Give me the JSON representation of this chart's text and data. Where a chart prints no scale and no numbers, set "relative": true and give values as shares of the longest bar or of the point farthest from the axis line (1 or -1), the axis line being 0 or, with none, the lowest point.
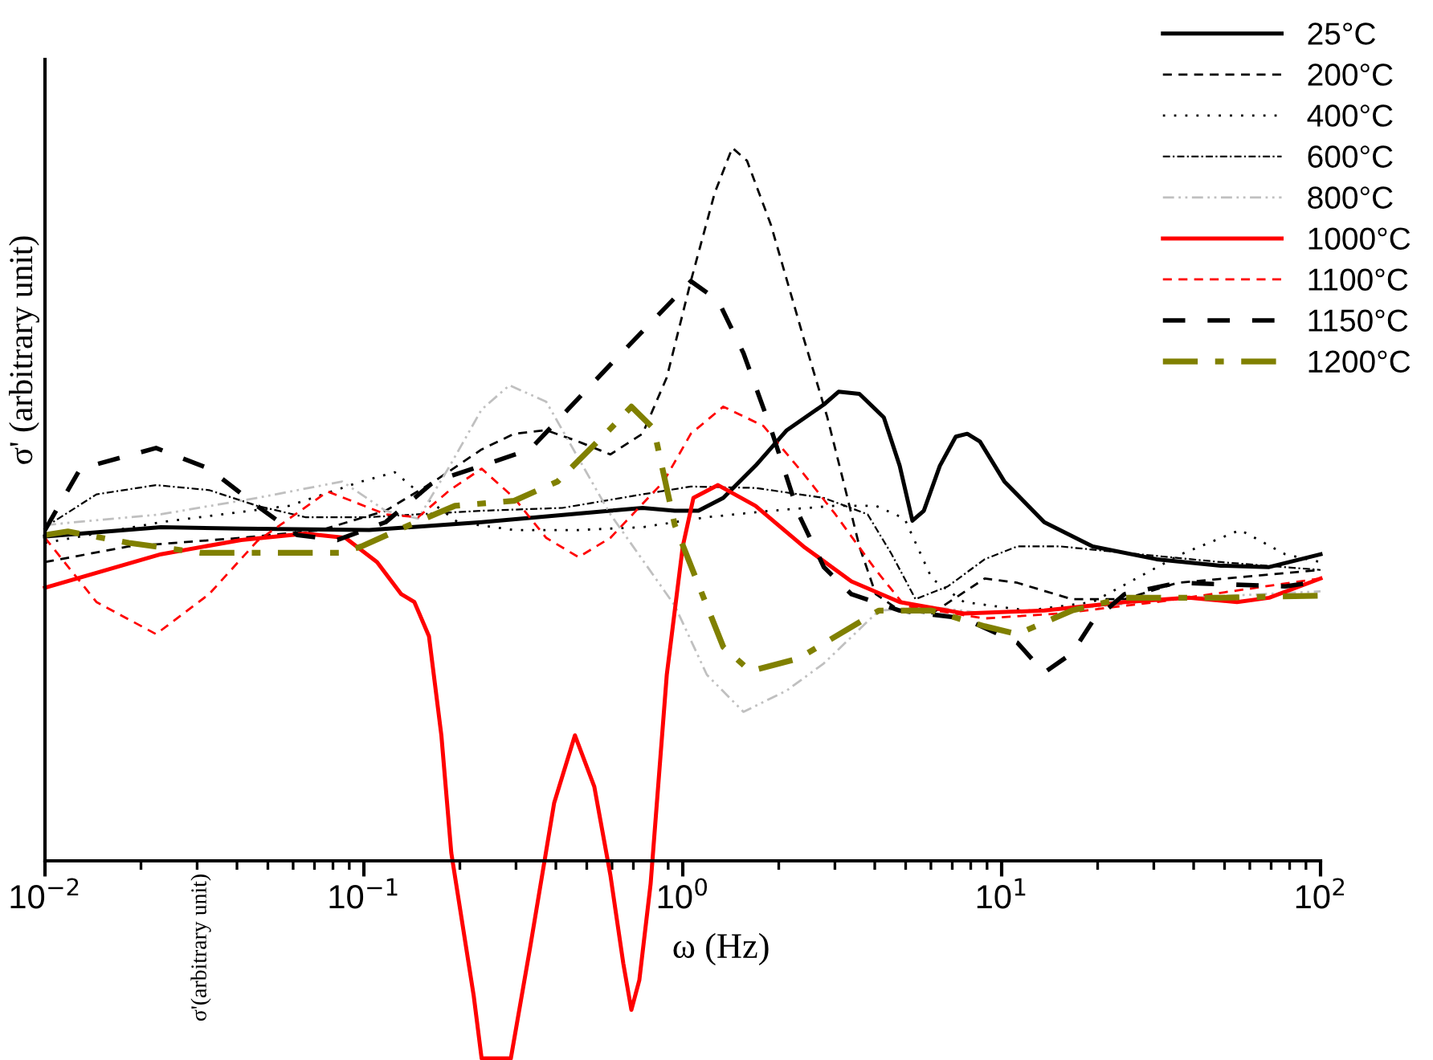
{
  "chart_data": {
    "type": "line",
    "xlabel": "ω (Hz)",
    "ylabel": "σ' (arbitrary unit)",
    "annotations": [
      "σ'(arbitrary unit)"
    ],
    "relative": true,
    "log": "x",
    "xlim": [
      0.01,
      100
    ],
    "xticks": [
      {
        "value": 0.01,
        "label": "10$^{−2}$"
      },
      {
        "value": 0.1,
        "label": "10$^{−1}$"
      },
      {
        "value": 1,
        "label": "10$^{0}$"
      },
      {
        "value": 10,
        "label": "10$^{1}$"
      },
      {
        "value": 100,
        "label": "10$^{2}$"
      }
    ],
    "grid": false,
    "legend": "top right",
    "marker": "none",
    "series": [
      {
        "name": "25°C",
        "color": "#000000",
        "line_style": "solid",
        "x": [
          0.01,
          0.0231,
          0.0412,
          0.104,
          0.234,
          0.593,
          0.748,
          0.944,
          1.12,
          1.34,
          1.69,
          2.12,
          2.77,
          3.08,
          3.58,
          4.27,
          4.79,
          5.25,
          5.7,
          6.4,
          7.18,
          7.8,
          8.55,
          10.2,
          13.6,
          19.3,
          30.6,
          48.7,
          69.0,
          100
        ],
        "values": [
          0.455,
          0.468,
          0.466,
          0.464,
          0.475,
          0.491,
          0.495,
          0.491,
          0.491,
          0.509,
          0.554,
          0.604,
          0.64,
          0.658,
          0.655,
          0.622,
          0.554,
          0.477,
          0.491,
          0.554,
          0.595,
          0.599,
          0.588,
          0.532,
          0.475,
          0.441,
          0.423,
          0.414,
          0.412,
          0.43
        ]
      },
      {
        "name": "200°C",
        "color": "#000000",
        "line_style": "dashed",
        "x": [
          0.01,
          0.0183,
          0.0412,
          0.0735,
          0.117,
          0.166,
          0.234,
          0.296,
          0.373,
          0.471,
          0.593,
          0.748,
          0.891,
          1.06,
          1.26,
          1.43,
          1.59,
          1.89,
          2.39,
          2.84,
          3.19,
          3.58,
          4.03,
          4.79,
          6.04,
          8.85,
          11.2,
          16.6,
          24.3,
          35.6,
          100
        ],
        "values": [
          0.419,
          0.441,
          0.453,
          0.464,
          0.491,
          0.532,
          0.577,
          0.599,
          0.604,
          0.588,
          0.57,
          0.599,
          0.678,
          0.813,
          0.937,
          1,
          0.982,
          0.892,
          0.734,
          0.622,
          0.532,
          0.441,
          0.374,
          0.351,
          0.347,
          0.396,
          0.39,
          0.367,
          0.367,
          0.39,
          0.408
        ]
      },
      {
        "name": "400°C",
        "color": "#000000",
        "line_style": "dotted",
        "x": [
          0.01,
          0.0231,
          0.0583,
          0.0982,
          0.125,
          0.156,
          0.197,
          0.296,
          0.471,
          0.748,
          1.19,
          1.89,
          3.01,
          4.03,
          4.96,
          6.04,
          7.62,
          12.1,
          19.3,
          36.5,
          56.0,
          77.5,
          100
        ],
        "values": [
          0.446,
          0.475,
          0.498,
          0.532,
          0.545,
          0.509,
          0.475,
          0.464,
          0.464,
          0.468,
          0.482,
          0.491,
          0.498,
          0.498,
          0.48,
          0.396,
          0.363,
          0.351,
          0.363,
          0.43,
          0.464,
          0.43,
          0.419
        ]
      },
      {
        "name": "600°C",
        "color": "#000000",
        "line_style": "dashdot_fine",
        "x": [
          0.01,
          0.0145,
          0.0223,
          0.0327,
          0.0462,
          0.0655,
          0.104,
          0.148,
          0.234,
          0.419,
          0.748,
          1.06,
          1.69,
          2.77,
          3.8,
          4.52,
          5.37,
          6.78,
          8.85,
          11.2,
          15.3,
          24.3,
          48.7,
          100
        ],
        "values": [
          0.468,
          0.514,
          0.527,
          0.52,
          0.498,
          0.482,
          0.482,
          0.486,
          0.491,
          0.495,
          0.514,
          0.525,
          0.523,
          0.509,
          0.486,
          0.43,
          0.367,
          0.385,
          0.423,
          0.441,
          0.441,
          0.432,
          0.419,
          0.408
        ]
      },
      {
        "name": "800°C",
        "color": "#c0c0c0",
        "line_style": "dashdotdot",
        "x": [
          0.01,
          0.0231,
          0.0462,
          0.0855,
          0.117,
          0.148,
          0.186,
          0.234,
          0.286,
          0.373,
          0.593,
          0.944,
          1.19,
          1.55,
          2.12,
          2.77,
          4.12,
          6.04,
          8.85,
          19.3,
          38.6,
          100
        ],
        "values": [
          0.471,
          0.486,
          0.509,
          0.532,
          0.491,
          0.48,
          0.554,
          0.633,
          0.667,
          0.644,
          0.486,
          0.358,
          0.261,
          0.209,
          0.239,
          0.277,
          0.351,
          0.356,
          0.347,
          0.356,
          0.369,
          0.378
        ]
      },
      {
        "name": "1000°C",
        "color": "#ff0000",
        "line_style": "solid",
        "x": [
          0.01,
          0.0231,
          0.0412,
          0.0655,
          0.0875,
          0.11,
          0.131,
          0.144,
          0.16,
          0.175,
          0.188,
          0.221,
          0.234,
          0.289,
          0.332,
          0.373,
          0.395,
          0.459,
          0.528,
          0.593,
          0.651,
          0.69,
          0.731,
          0.793,
          0.891,
          1.0,
          1.08,
          1.29,
          1.69,
          2.39,
          3.38,
          4.79,
          7.62,
          13.6,
          24.3,
          38.6,
          54.7,
          69.0,
          100
        ],
        "values": [
          0.383,
          0.43,
          0.45,
          0.459,
          0.453,
          0.419,
          0.374,
          0.363,
          0.315,
          0.176,
          0.011,
          -0.189,
          -0.277,
          -0.277,
          -0.122,
          0.014,
          0.081,
          0.176,
          0.104,
          -0.02,
          -0.144,
          -0.209,
          -0.167,
          -0.032,
          0.261,
          0.441,
          0.509,
          0.527,
          0.498,
          0.441,
          0.392,
          0.363,
          0.347,
          0.351,
          0.363,
          0.369,
          0.363,
          0.369,
          0.396
        ]
      },
      {
        "name": "1100°C",
        "color": "#ff0000",
        "line_style": "dashed",
        "x": [
          0.01,
          0.0145,
          0.0223,
          0.0327,
          0.0462,
          0.077,
          0.117,
          0.148,
          0.186,
          0.234,
          0.296,
          0.373,
          0.471,
          0.593,
          0.871,
          1.06,
          1.34,
          1.79,
          2.39,
          3.01,
          4.03,
          4.96,
          8.85,
          15.3,
          30.6,
          100
        ],
        "values": [
          0.453,
          0.363,
          0.318,
          0.374,
          0.448,
          0.518,
          0.486,
          0.482,
          0.52,
          0.55,
          0.509,
          0.453,
          0.426,
          0.453,
          0.532,
          0.599,
          0.637,
          0.61,
          0.543,
          0.486,
          0.408,
          0.358,
          0.34,
          0.347,
          0.363,
          0.396
        ]
      },
      {
        "name": "1150°C",
        "color": "#000000",
        "line_style": "longdash",
        "x": [
          0.01,
          0.0129,
          0.0223,
          0.0327,
          0.0462,
          0.0618,
          0.0826,
          0.117,
          0.166,
          0.234,
          0.332,
          0.593,
          1.06,
          1.29,
          1.55,
          1.89,
          2.31,
          2.77,
          3.38,
          4.79,
          7.62,
          11.2,
          13.6,
          16.6,
          19.3,
          24.3,
          35.6,
          77.5,
          100
        ],
        "values": [
          0.464,
          0.55,
          0.579,
          0.55,
          0.498,
          0.457,
          0.45,
          0.475,
          0.532,
          0.554,
          0.577,
          0.696,
          0.813,
          0.786,
          0.712,
          0.606,
          0.486,
          0.412,
          0.374,
          0.351,
          0.34,
          0.306,
          0.264,
          0.291,
          0.336,
          0.374,
          0.39,
          0.385,
          0.392
        ]
      },
      {
        "name": "1200°C",
        "color": "#808000",
        "line_style": "dashdot",
        "x": [
          0.01,
          0.0118,
          0.0183,
          0.0308,
          0.0845,
          0.0982,
          0.131,
          0.193,
          0.296,
          0.405,
          0.593,
          0.69,
          0.811,
          0.944,
          1.1,
          1.34,
          1.63,
          2.31,
          4.12,
          6.04,
          8.85,
          11.2,
          16.6,
          24.3,
          48.7,
          100
        ],
        "values": [
          0.457,
          0.462,
          0.446,
          0.432,
          0.432,
          0.441,
          0.466,
          0.498,
          0.505,
          0.532,
          0.606,
          0.637,
          0.606,
          0.471,
          0.396,
          0.3,
          0.266,
          0.284,
          0.351,
          0.351,
          0.329,
          0.318,
          0.351,
          0.369,
          0.369,
          0.372
        ]
      }
    ]
  }
}
